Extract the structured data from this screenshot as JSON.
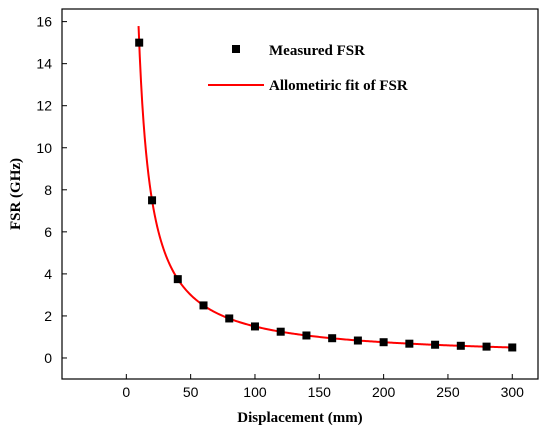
{
  "chart_data": {
    "type": "scatter",
    "xlabel": "Displacement (mm)",
    "ylabel": "FSR (GHz)",
    "xlim": [
      -50,
      320
    ],
    "ylim": [
      -1,
      16.6
    ],
    "xticks": [
      0,
      50,
      100,
      150,
      200,
      250,
      300
    ],
    "yticks": [
      0,
      2,
      4,
      6,
      8,
      10,
      12,
      14,
      16
    ],
    "grid": false,
    "legend_position": "top-right",
    "series": [
      {
        "name": "Measured FSR",
        "kind": "scatter",
        "marker": "square",
        "color": "#000000",
        "x": [
          10,
          20,
          40,
          60,
          80,
          100,
          120,
          140,
          160,
          180,
          200,
          220,
          240,
          260,
          280,
          300
        ],
        "y": [
          15.0,
          7.5,
          3.75,
          2.5,
          1.88,
          1.5,
          1.25,
          1.07,
          0.94,
          0.83,
          0.75,
          0.68,
          0.63,
          0.58,
          0.54,
          0.5
        ]
      },
      {
        "name": "Allometiric fit of FSR",
        "kind": "line",
        "color": "#ff0000",
        "model": "y = a * x^b",
        "a": 150,
        "b": -1,
        "x_start": 9.5,
        "x_end": 300
      }
    ]
  }
}
